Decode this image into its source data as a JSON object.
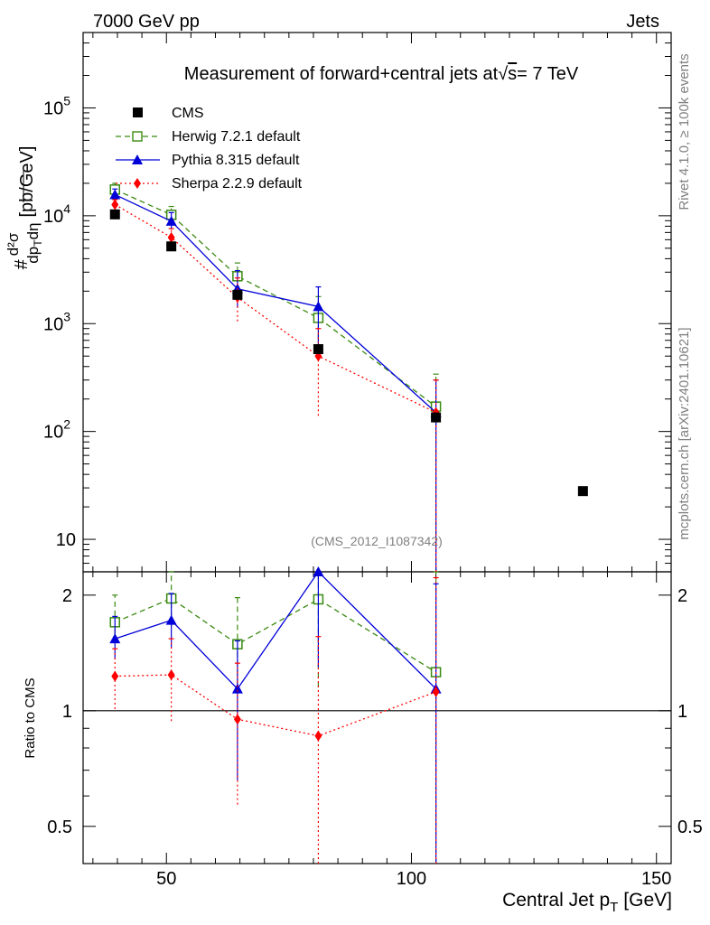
{
  "header": {
    "left": "7000 GeV pp",
    "right": "Jets"
  },
  "side_labels": {
    "rivet": "Rivet 4.1.0, ≥ 100k events",
    "mcplots": "mcplots.cern.ch [arXiv:2401.10621]"
  },
  "chart_data": {
    "type": "scatter",
    "title": "Measurement of forward+central jets at √s = 7 TeV",
    "title_parts": {
      "main": "Measurement of forward+central jets at",
      "sqrt": "√",
      "s": "s",
      "rest": "= 7 TeV"
    },
    "analysis_label": "(CMS_2012_I1087342)",
    "xlabel": "Central Jet p_T [GeV]",
    "xlabel_parts": {
      "main": "Central Jet p",
      "sub": "T",
      "unit": "[GeV]"
    },
    "ylabel": "# d²σ / dp_T dη [pb/GeV]",
    "ylabel_parts": {
      "hash": "#",
      "num": "d²σ",
      "den_main": "dp",
      "den_sub": "T",
      "den_tail": "dη",
      "unit": "[pb/GeV]"
    },
    "ratio_ylabel": "Ratio to CMS",
    "xlim": [
      33,
      153
    ],
    "ylim": [
      5,
      500000
    ],
    "yscale": "log",
    "ratio_ylim": [
      0.4,
      2.3
    ],
    "x_ticks": [
      50,
      100,
      150
    ],
    "x_tick_labels": [
      "50",
      "100",
      "150"
    ],
    "y_ticks": [
      10,
      100,
      1000,
      10000,
      100000
    ],
    "y_tick_labels": [
      {
        "base": "10",
        "exp": ""
      },
      {
        "base": "10",
        "exp": "2"
      },
      {
        "base": "10",
        "exp": "3"
      },
      {
        "base": "10",
        "exp": "4"
      },
      {
        "base": "10",
        "exp": "5"
      }
    ],
    "ratio_ticks": [
      0.5,
      1,
      2
    ],
    "ratio_tick_labels": [
      "0.5",
      "1",
      "2"
    ],
    "data": {
      "name": "CMS",
      "x": [
        39.5,
        51,
        64.5,
        81,
        105,
        135
      ],
      "y": [
        10300,
        5200,
        1850,
        580,
        135,
        28
      ],
      "color": "#000000"
    },
    "series": [
      {
        "name": "Herwig 7.2.1 default",
        "color": "#3a8a12",
        "dash": "6,4",
        "marker": "open-square",
        "x": [
          39.5,
          51,
          64.5,
          81,
          105
        ],
        "y": [
          17500,
          10200,
          2750,
          1130,
          170
        ],
        "err_lo": [
          2000,
          1600,
          700,
          420,
          169
        ],
        "err_hi": [
          2500,
          2000,
          900,
          650,
          170
        ],
        "ratio": [
          1.7,
          1.96,
          1.49,
          1.95,
          1.26
        ],
        "ratio_err_lo": [
          0.2,
          0.3,
          0.38,
          0.8,
          1.2
        ],
        "ratio_err_hi": [
          0.3,
          0.34,
          0.48,
          0.5,
          1.1
        ]
      },
      {
        "name": "Pythia 8.315 default",
        "color": "#0000d8",
        "dash": "",
        "marker": "filled-triangle",
        "x": [
          39.5,
          51,
          64.5,
          81,
          105
        ],
        "y": [
          15700,
          8900,
          2100,
          1440,
          150
        ],
        "err_lo": [
          1500,
          1400,
          700,
          900,
          149
        ],
        "err_hi": [
          2000,
          1800,
          1000,
          750,
          150
        ],
        "ratio": [
          1.54,
          1.72,
          1.14,
          2.3,
          1.14
        ],
        "ratio_err_lo": [
          0.18,
          0.26,
          0.48,
          1.0,
          1.0
        ],
        "ratio_err_hi": [
          0.22,
          0.3,
          0.38,
          0.1,
          1.0
        ]
      },
      {
        "name": "Sherpa 2.2.9 default",
        "color": "#ff0000",
        "dash": "2,3",
        "marker": "filled-diamond",
        "x": [
          39.5,
          51,
          64.5,
          81,
          105
        ],
        "y": [
          12700,
          6300,
          1750,
          500,
          150
        ],
        "err_lo": [
          1200,
          1000,
          700,
          360,
          149
        ],
        "err_hi": [
          1400,
          1300,
          900,
          400,
          150
        ],
        "ratio": [
          1.23,
          1.24,
          0.95,
          0.86,
          1.12
        ],
        "ratio_err_lo": [
          0.22,
          0.3,
          0.38,
          0.8,
          1.1
        ],
        "ratio_err_hi": [
          0.22,
          0.3,
          0.38,
          0.7,
          1.1
        ]
      }
    ]
  }
}
